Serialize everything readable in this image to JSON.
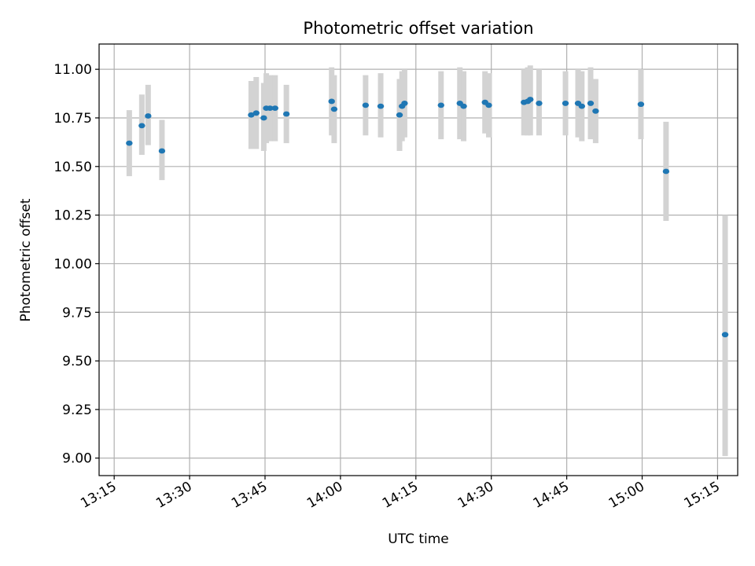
{
  "chart_data": {
    "type": "scatter",
    "title": "Photometric offset variation",
    "xlabel": "UTC time",
    "ylabel": "Photometric offset",
    "x_ticks": [
      "13:15",
      "13:30",
      "13:45",
      "14:00",
      "14:15",
      "14:30",
      "14:45",
      "15:00",
      "15:15"
    ],
    "y_ticks": [
      "9.00",
      "9.25",
      "9.50",
      "9.75",
      "10.00",
      "10.25",
      "10.50",
      "10.75",
      "11.00"
    ],
    "xlim": [
      "13:12",
      "15:19"
    ],
    "ylim": [
      8.91,
      11.13
    ],
    "grid": true,
    "colors": {
      "points": "#1f77b4",
      "errorbars": "#d3d3d3",
      "grid": "#b0b0b0"
    },
    "points": [
      {
        "x": "13:18:00",
        "y": 10.62,
        "lo": 10.45,
        "hi": 10.79
      },
      {
        "x": "13:20:30",
        "y": 10.71,
        "lo": 10.56,
        "hi": 10.87
      },
      {
        "x": "13:21:45",
        "y": 10.76,
        "lo": 10.61,
        "hi": 10.92
      },
      {
        "x": "13:24:30",
        "y": 10.58,
        "lo": 10.43,
        "hi": 10.74
      },
      {
        "x": "13:42:15",
        "y": 10.765,
        "lo": 10.59,
        "hi": 10.94
      },
      {
        "x": "13:43:15",
        "y": 10.775,
        "lo": 10.59,
        "hi": 10.96
      },
      {
        "x": "13:44:45",
        "y": 10.75,
        "lo": 10.58,
        "hi": 10.93
      },
      {
        "x": "13:45:15",
        "y": 10.8,
        "lo": 10.62,
        "hi": 10.98
      },
      {
        "x": "13:46:00",
        "y": 10.8,
        "lo": 10.63,
        "hi": 10.97
      },
      {
        "x": "13:47:00",
        "y": 10.8,
        "lo": 10.63,
        "hi": 10.97
      },
      {
        "x": "13:49:15",
        "y": 10.77,
        "lo": 10.62,
        "hi": 10.92
      },
      {
        "x": "13:58:15",
        "y": 10.835,
        "lo": 10.66,
        "hi": 11.01
      },
      {
        "x": "13:58:45",
        "y": 10.795,
        "lo": 10.62,
        "hi": 10.97
      },
      {
        "x": "14:05:00",
        "y": 10.815,
        "lo": 10.66,
        "hi": 10.97
      },
      {
        "x": "14:08:00",
        "y": 10.81,
        "lo": 10.65,
        "hi": 10.98
      },
      {
        "x": "14:11:45",
        "y": 10.765,
        "lo": 10.58,
        "hi": 10.95
      },
      {
        "x": "14:12:15",
        "y": 10.81,
        "lo": 10.63,
        "hi": 10.99
      },
      {
        "x": "14:12:45",
        "y": 10.825,
        "lo": 10.65,
        "hi": 11.0
      },
      {
        "x": "14:20:00",
        "y": 10.815,
        "lo": 10.64,
        "hi": 10.99
      },
      {
        "x": "14:23:45",
        "y": 10.825,
        "lo": 10.64,
        "hi": 11.01
      },
      {
        "x": "14:24:30",
        "y": 10.81,
        "lo": 10.63,
        "hi": 10.99
      },
      {
        "x": "14:28:45",
        "y": 10.83,
        "lo": 10.67,
        "hi": 10.99
      },
      {
        "x": "14:29:30",
        "y": 10.815,
        "lo": 10.65,
        "hi": 10.98
      },
      {
        "x": "14:36:30",
        "y": 10.83,
        "lo": 10.66,
        "hi": 11.0
      },
      {
        "x": "14:37:15",
        "y": 10.835,
        "lo": 10.66,
        "hi": 11.01
      },
      {
        "x": "14:37:45",
        "y": 10.845,
        "lo": 10.66,
        "hi": 11.02
      },
      {
        "x": "14:39:30",
        "y": 10.825,
        "lo": 10.66,
        "hi": 11.0
      },
      {
        "x": "14:44:45",
        "y": 10.825,
        "lo": 10.66,
        "hi": 10.99
      },
      {
        "x": "14:47:15",
        "y": 10.825,
        "lo": 10.65,
        "hi": 11.0
      },
      {
        "x": "14:48:00",
        "y": 10.81,
        "lo": 10.63,
        "hi": 10.99
      },
      {
        "x": "14:49:45",
        "y": 10.825,
        "lo": 10.64,
        "hi": 11.01
      },
      {
        "x": "14:50:45",
        "y": 10.785,
        "lo": 10.62,
        "hi": 10.95
      },
      {
        "x": "14:59:45",
        "y": 10.82,
        "lo": 10.64,
        "hi": 11.0
      },
      {
        "x": "15:04:45",
        "y": 10.475,
        "lo": 10.22,
        "hi": 10.73
      },
      {
        "x": "15:16:30",
        "y": 9.635,
        "lo": 9.01,
        "hi": 10.25
      }
    ]
  }
}
